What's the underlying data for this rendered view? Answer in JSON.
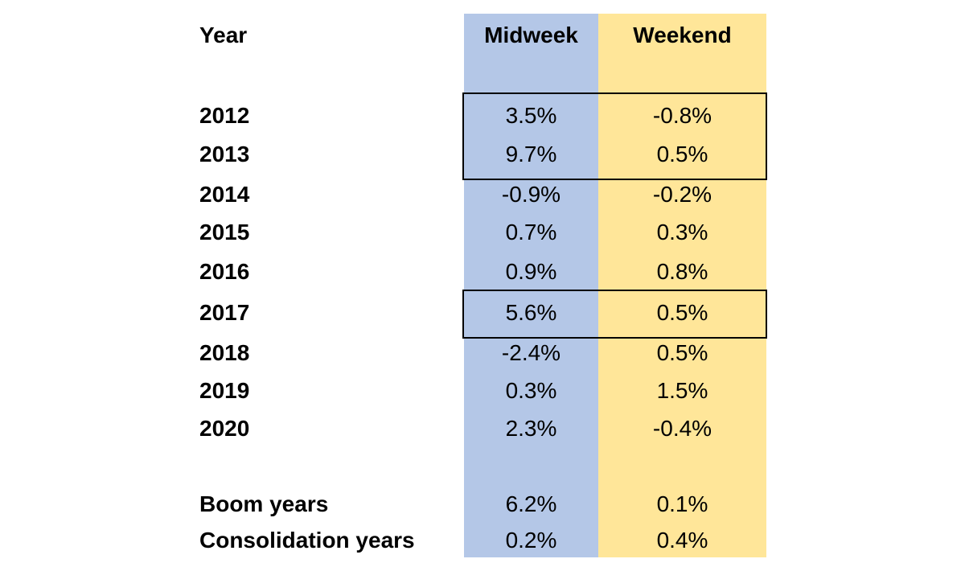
{
  "colors": {
    "midweek_fill": "#b4c7e7",
    "weekend_fill": "#ffe699",
    "highlight_border": "#000000"
  },
  "chart_data": {
    "type": "table",
    "columns": [
      "Year",
      "Midweek",
      "Weekend"
    ],
    "rows": [
      {
        "label": "2012",
        "midweek": "3.5%",
        "weekend": "-0.8%",
        "highlighted": true
      },
      {
        "label": "2013",
        "midweek": "9.7%",
        "weekend": "0.5%",
        "highlighted": true
      },
      {
        "label": "2014",
        "midweek": "-0.9%",
        "weekend": "-0.2%",
        "highlighted": false
      },
      {
        "label": "2015",
        "midweek": "0.7%",
        "weekend": "0.3%",
        "highlighted": false
      },
      {
        "label": "2016",
        "midweek": "0.9%",
        "weekend": "0.8%",
        "highlighted": false
      },
      {
        "label": "2017",
        "midweek": "5.6%",
        "weekend": "0.5%",
        "highlighted": true
      },
      {
        "label": "2018",
        "midweek": "-2.4%",
        "weekend": "0.5%",
        "highlighted": false
      },
      {
        "label": "2019",
        "midweek": "0.3%",
        "weekend": "1.5%",
        "highlighted": false
      },
      {
        "label": "2020",
        "midweek": "2.3%",
        "weekend": "-0.4%",
        "highlighted": false
      }
    ],
    "summary_rows": [
      {
        "label": "Boom years",
        "midweek": "6.2%",
        "weekend": "0.1%"
      },
      {
        "label": "Consolidation years",
        "midweek": "0.2%",
        "weekend": "0.4%"
      }
    ]
  }
}
